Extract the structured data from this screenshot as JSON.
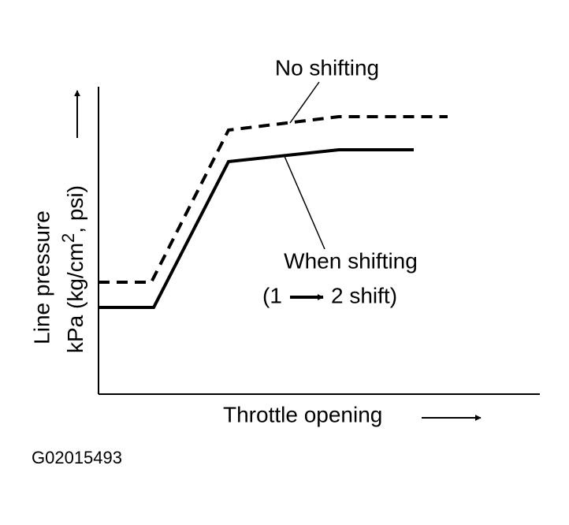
{
  "labels": {
    "no_shifting": "No shifting",
    "when_shifting": "When shifting",
    "shift_open": "(1",
    "shift_close": "2 shift)"
  },
  "y_axis": {
    "line1": "Line pressure",
    "line2_a": "kPa (kg/cm",
    "line2_sup": "2",
    "line2_b": ", psi)"
  },
  "x_axis": {
    "label": "Throttle opening"
  },
  "figure_id": "G02015493"
}
